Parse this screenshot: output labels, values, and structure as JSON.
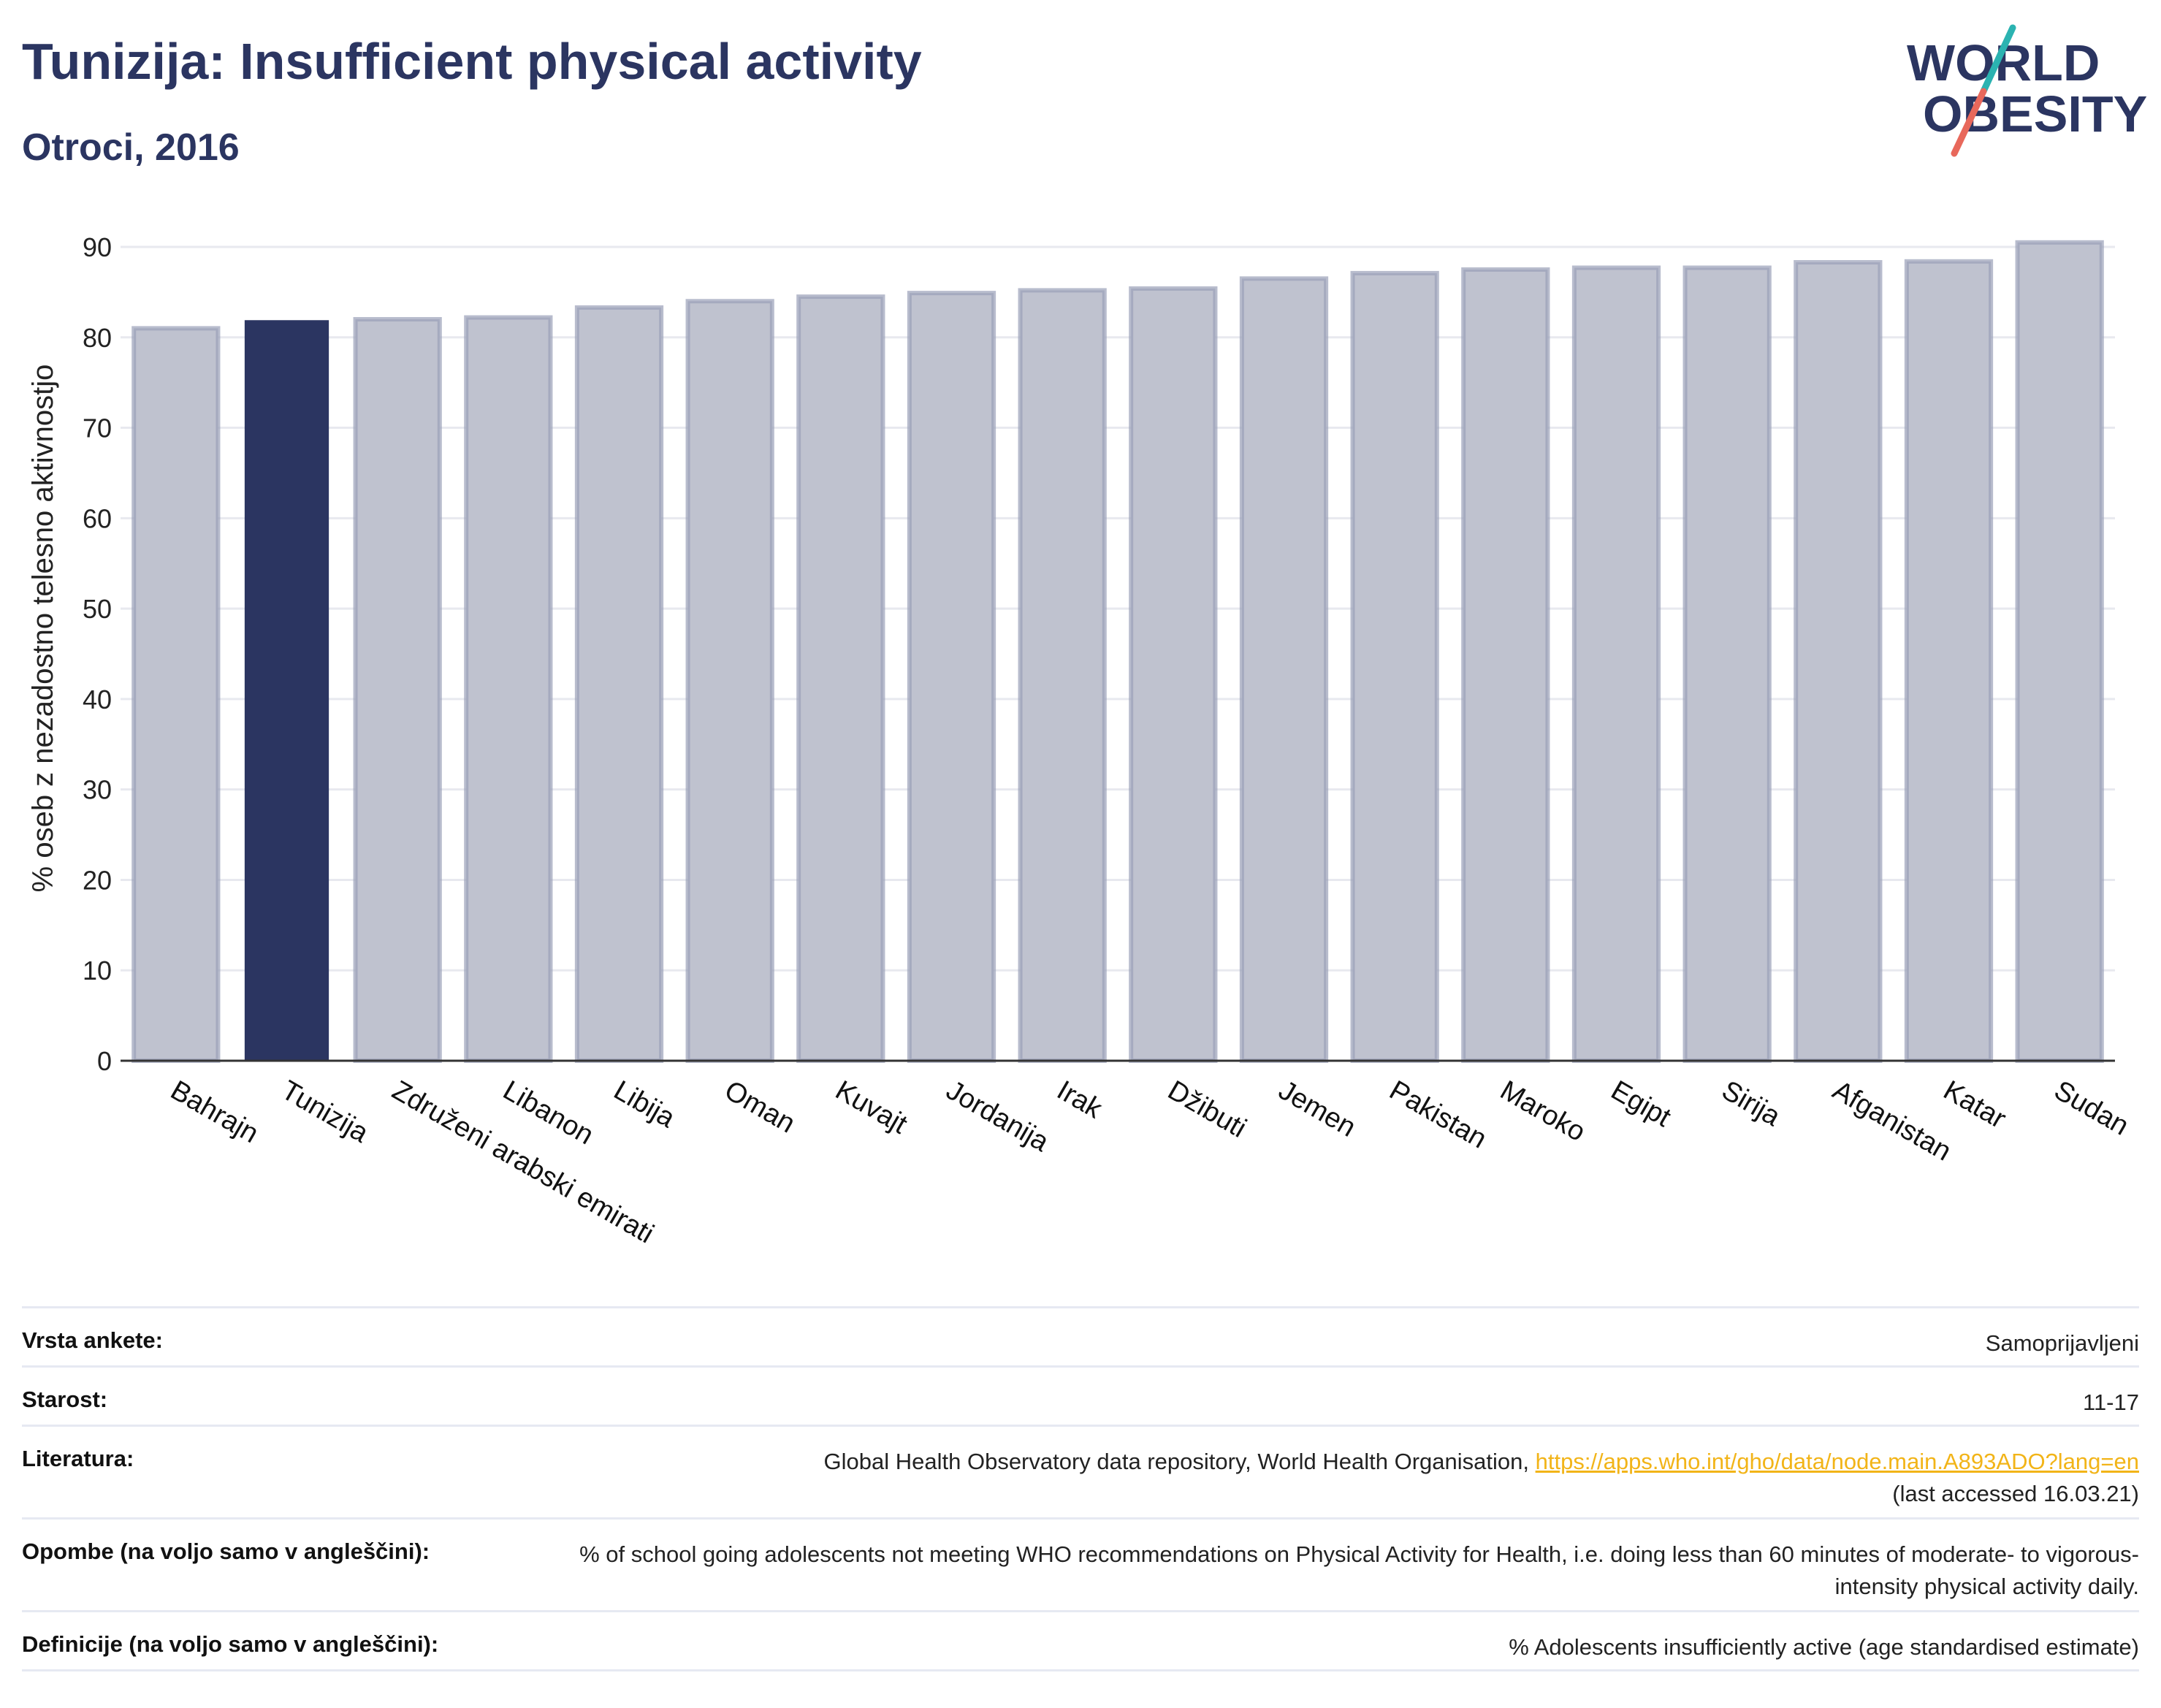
{
  "header": {
    "title": "Tunizija: Insufficient physical activity",
    "subtitle": "Otroci, 2016"
  },
  "logo": {
    "line1": "WORLD",
    "line2": "OBESITY",
    "colors": [
      "#2b3561",
      "#2bb3b1",
      "#e8685b"
    ]
  },
  "chart_data": {
    "type": "bar",
    "categories": [
      "Bahrajn",
      "Tunizija",
      "Združeni arabski emirati",
      "Libanon",
      "Libija",
      "Oman",
      "Kuvajt",
      "Jordanija",
      "Irak",
      "Džibuti",
      "Jemen",
      "Pakistan",
      "Maroko",
      "Egipt",
      "Sirija",
      "Afganistan",
      "Katar",
      "Sudan"
    ],
    "values": [
      81.0,
      81.9,
      82.0,
      82.2,
      83.3,
      84.0,
      84.5,
      84.9,
      85.2,
      85.4,
      86.5,
      87.1,
      87.5,
      87.7,
      87.7,
      88.3,
      88.4,
      90.5
    ],
    "highlight": "Tunizija",
    "ylabel": "% oseb z nezadostno telesno aktivnostjo",
    "xlabel": "",
    "ylim": [
      0,
      90
    ],
    "yticks": [
      0,
      10,
      20,
      30,
      40,
      50,
      60,
      70,
      80,
      90
    ],
    "grid": true,
    "colors": {
      "bar": "#bfc2cf",
      "bar_edge": "#9aa0b8",
      "highlight": "#2b3561",
      "grid": "#e8e9ef",
      "axis": "#333333"
    }
  },
  "meta": {
    "survey_label": "Vrsta ankete:",
    "survey_value": "Samoprijavljeni",
    "age_label": "Starost:",
    "age_value": "11-17",
    "ref_label": "Literatura:",
    "ref_text": "Global Health Observatory data repository, World Health Organisation, ",
    "ref_link": "https://apps.who.int/gho/data/node.main.A893ADO?lang=en",
    "ref_accessed": "(last accessed 16.03.21)",
    "notes_label": "Opombe (na voljo samo v angleščini):",
    "notes_value": "% of school going adolescents not meeting WHO recommendations on Physical Activity for Health, i.e. doing less than 60 minutes of moderate- to vigorous-intensity physical activity daily.",
    "def_label": "Definicije (na voljo samo v angleščini):",
    "def_value": "% Adolescents insufficiently active (age standardised estimate)"
  }
}
